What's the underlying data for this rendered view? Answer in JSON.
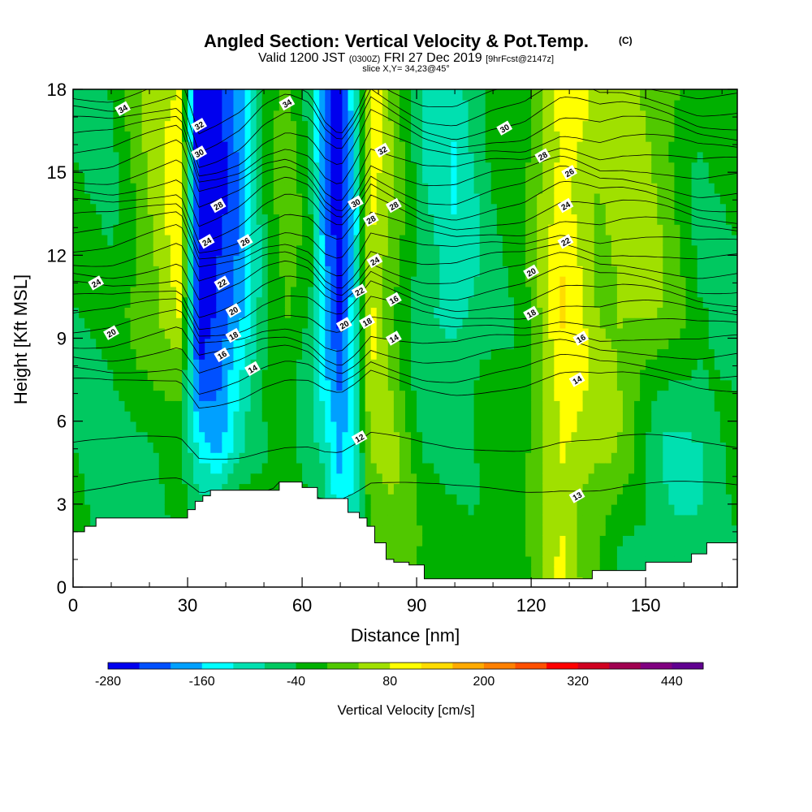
{
  "title": {
    "main": "Angled Section: Vertical Velocity & Pot.Temp.",
    "tag": "(C)",
    "valid_prefix": "Valid 1200 JST",
    "utc": "(0300Z)",
    "date": "FRI 27 Dec 2019",
    "fcst": "[9hrFcst@2147z]",
    "slice": "slice X,Y= 34,23@45°"
  },
  "chart_data": {
    "type": "heatmap",
    "xlabel": "Distance [nm]",
    "ylabel": "Height [Kft MSL]",
    "xlim": [
      0,
      174
    ],
    "ylim": [
      0,
      18
    ],
    "x_ticks": [
      0,
      30,
      60,
      90,
      120,
      150
    ],
    "y_ticks": [
      0,
      3,
      6,
      9,
      12,
      15,
      18
    ],
    "colorbar": {
      "title": "Vertical Velocity [cm/s]",
      "labels": [
        -280,
        -160,
        -40,
        80,
        200,
        320,
        440
      ],
      "levels": [
        -280,
        -240,
        -200,
        -160,
        -120,
        -80,
        -40,
        0,
        40,
        80,
        120,
        160,
        200,
        240,
        280,
        320,
        360,
        400,
        440,
        480
      ],
      "colors": [
        "#0000ee",
        "#0050ff",
        "#00a0ff",
        "#00ffff",
        "#00e0b0",
        "#00c860",
        "#00b000",
        "#50c800",
        "#a0e000",
        "#ffff00",
        "#ffdc00",
        "#ffaa00",
        "#ff8000",
        "#ff5000",
        "#ff0000",
        "#d00020",
        "#a00050",
        "#800080",
        "#600090"
      ]
    },
    "vertical_velocity_profile": {
      "x": [
        0,
        10,
        20,
        28,
        33,
        38,
        44,
        50,
        56,
        62,
        66,
        70,
        74,
        78,
        84,
        92,
        100,
        110,
        118,
        124,
        128,
        132,
        138,
        144,
        150,
        156,
        164,
        174
      ],
      "w_upper": [
        -40,
        -40,
        40,
        100,
        -290,
        -250,
        -180,
        -40,
        20,
        -40,
        -200,
        -270,
        -120,
        100,
        20,
        -80,
        -110,
        -40,
        -20,
        60,
        110,
        90,
        40,
        60,
        50,
        20,
        -40,
        -40
      ],
      "w_lower": [
        -40,
        -60,
        -60,
        -40,
        -120,
        -160,
        -80,
        -60,
        -40,
        -60,
        -80,
        -160,
        -100,
        40,
        40,
        -40,
        -40,
        -40,
        -20,
        60,
        100,
        80,
        40,
        20,
        -40,
        -80,
        -80,
        -40
      ],
      "w_surface": [
        -40,
        -60,
        -60,
        -40,
        -60,
        20,
        40,
        20,
        -20,
        -40,
        -60,
        -120,
        -80,
        20,
        20,
        -20,
        -20,
        -20,
        -20,
        40,
        80,
        40,
        20,
        -40,
        -60,
        -80,
        -60,
        -40
      ]
    },
    "terrain": {
      "x": [
        0,
        3,
        6,
        9,
        12,
        18,
        24,
        30,
        32,
        34,
        36,
        42,
        48,
        52,
        54,
        57,
        60,
        64,
        68,
        72,
        75,
        77,
        79,
        82,
        84,
        88,
        92,
        100,
        110,
        120,
        130,
        136,
        142,
        150,
        158,
        162,
        166,
        170,
        174
      ],
      "height": [
        2.0,
        2.2,
        2.5,
        2.5,
        2.5,
        2.5,
        2.5,
        2.8,
        3.1,
        3.3,
        3.5,
        3.5,
        3.5,
        3.5,
        3.8,
        3.8,
        3.6,
        3.2,
        3.2,
        2.7,
        2.5,
        2.2,
        1.6,
        1.0,
        0.9,
        0.8,
        0.3,
        0.3,
        0.3,
        0.3,
        0.3,
        0.6,
        0.6,
        0.9,
        0.9,
        1.2,
        1.6,
        1.6,
        1.6
      ]
    },
    "pot_temp_contours": [
      {
        "value": 12,
        "base_height": 3.6
      },
      {
        "value": 13,
        "base_height": 5.2
      },
      {
        "value": 14,
        "base_height": 7.4
      },
      {
        "value": 15,
        "base_height": 7.9
      },
      {
        "value": 16,
        "base_height": 8.5
      },
      {
        "value": 17,
        "base_height": 9.0
      },
      {
        "value": 18,
        "base_height": 9.5
      },
      {
        "value": 19,
        "base_height": 10.0
      },
      {
        "value": 20,
        "base_height": 10.5
      },
      {
        "value": 21,
        "base_height": 11.0
      },
      {
        "value": 22,
        "base_height": 11.5
      },
      {
        "value": 23,
        "base_height": 12.0
      },
      {
        "value": 24,
        "base_height": 12.5
      },
      {
        "value": 25,
        "base_height": 13.0
      },
      {
        "value": 26,
        "base_height": 13.5
      },
      {
        "value": 27,
        "base_height": 14.0
      },
      {
        "value": 28,
        "base_height": 14.5
      },
      {
        "value": 29,
        "base_height": 15.0
      },
      {
        "value": 30,
        "base_height": 15.5
      },
      {
        "value": 31,
        "base_height": 16.0
      },
      {
        "value": 32,
        "base_height": 16.5
      },
      {
        "value": 33,
        "base_height": 17.0
      },
      {
        "value": 34,
        "base_height": 17.5
      },
      {
        "value": 35,
        "base_height": 18.0
      }
    ],
    "contour_labels": [
      {
        "text": "34",
        "x": 13,
        "y": 17.3
      },
      {
        "text": "32",
        "x": 33,
        "y": 16.7
      },
      {
        "text": "30",
        "x": 33,
        "y": 15.7
      },
      {
        "text": "28",
        "x": 38,
        "y": 13.8
      },
      {
        "text": "26",
        "x": 45,
        "y": 12.5
      },
      {
        "text": "24",
        "x": 35,
        "y": 12.5
      },
      {
        "text": "22",
        "x": 39,
        "y": 11.0
      },
      {
        "text": "20",
        "x": 42,
        "y": 10.0
      },
      {
        "text": "18",
        "x": 42,
        "y": 9.1
      },
      {
        "text": "16",
        "x": 39,
        "y": 8.4
      },
      {
        "text": "14",
        "x": 47,
        "y": 7.9
      },
      {
        "text": "34",
        "x": 56,
        "y": 17.5
      },
      {
        "text": "32",
        "x": 81,
        "y": 15.8
      },
      {
        "text": "30",
        "x": 74,
        "y": 13.9
      },
      {
        "text": "28",
        "x": 78,
        "y": 13.3
      },
      {
        "text": "28",
        "x": 84,
        "y": 13.8
      },
      {
        "text": "24",
        "x": 79,
        "y": 11.8
      },
      {
        "text": "22",
        "x": 75,
        "y": 10.7
      },
      {
        "text": "20",
        "x": 71,
        "y": 9.5
      },
      {
        "text": "18",
        "x": 77,
        "y": 9.6
      },
      {
        "text": "16",
        "x": 84,
        "y": 10.4
      },
      {
        "text": "14",
        "x": 84,
        "y": 9.0
      },
      {
        "text": "12",
        "x": 75,
        "y": 5.4
      },
      {
        "text": "24",
        "x": 6,
        "y": 11.0
      },
      {
        "text": "20",
        "x": 10,
        "y": 9.2
      },
      {
        "text": "30",
        "x": 113,
        "y": 16.6
      },
      {
        "text": "28",
        "x": 123,
        "y": 15.6
      },
      {
        "text": "26",
        "x": 130,
        "y": 15.0
      },
      {
        "text": "24",
        "x": 129,
        "y": 13.8
      },
      {
        "text": "22",
        "x": 129,
        "y": 12.5
      },
      {
        "text": "20",
        "x": 120,
        "y": 11.4
      },
      {
        "text": "18",
        "x": 120,
        "y": 9.9
      },
      {
        "text": "16",
        "x": 133,
        "y": 9.0
      },
      {
        "text": "14",
        "x": 132,
        "y": 7.5
      },
      {
        "text": "13",
        "x": 132,
        "y": 3.3
      }
    ]
  }
}
